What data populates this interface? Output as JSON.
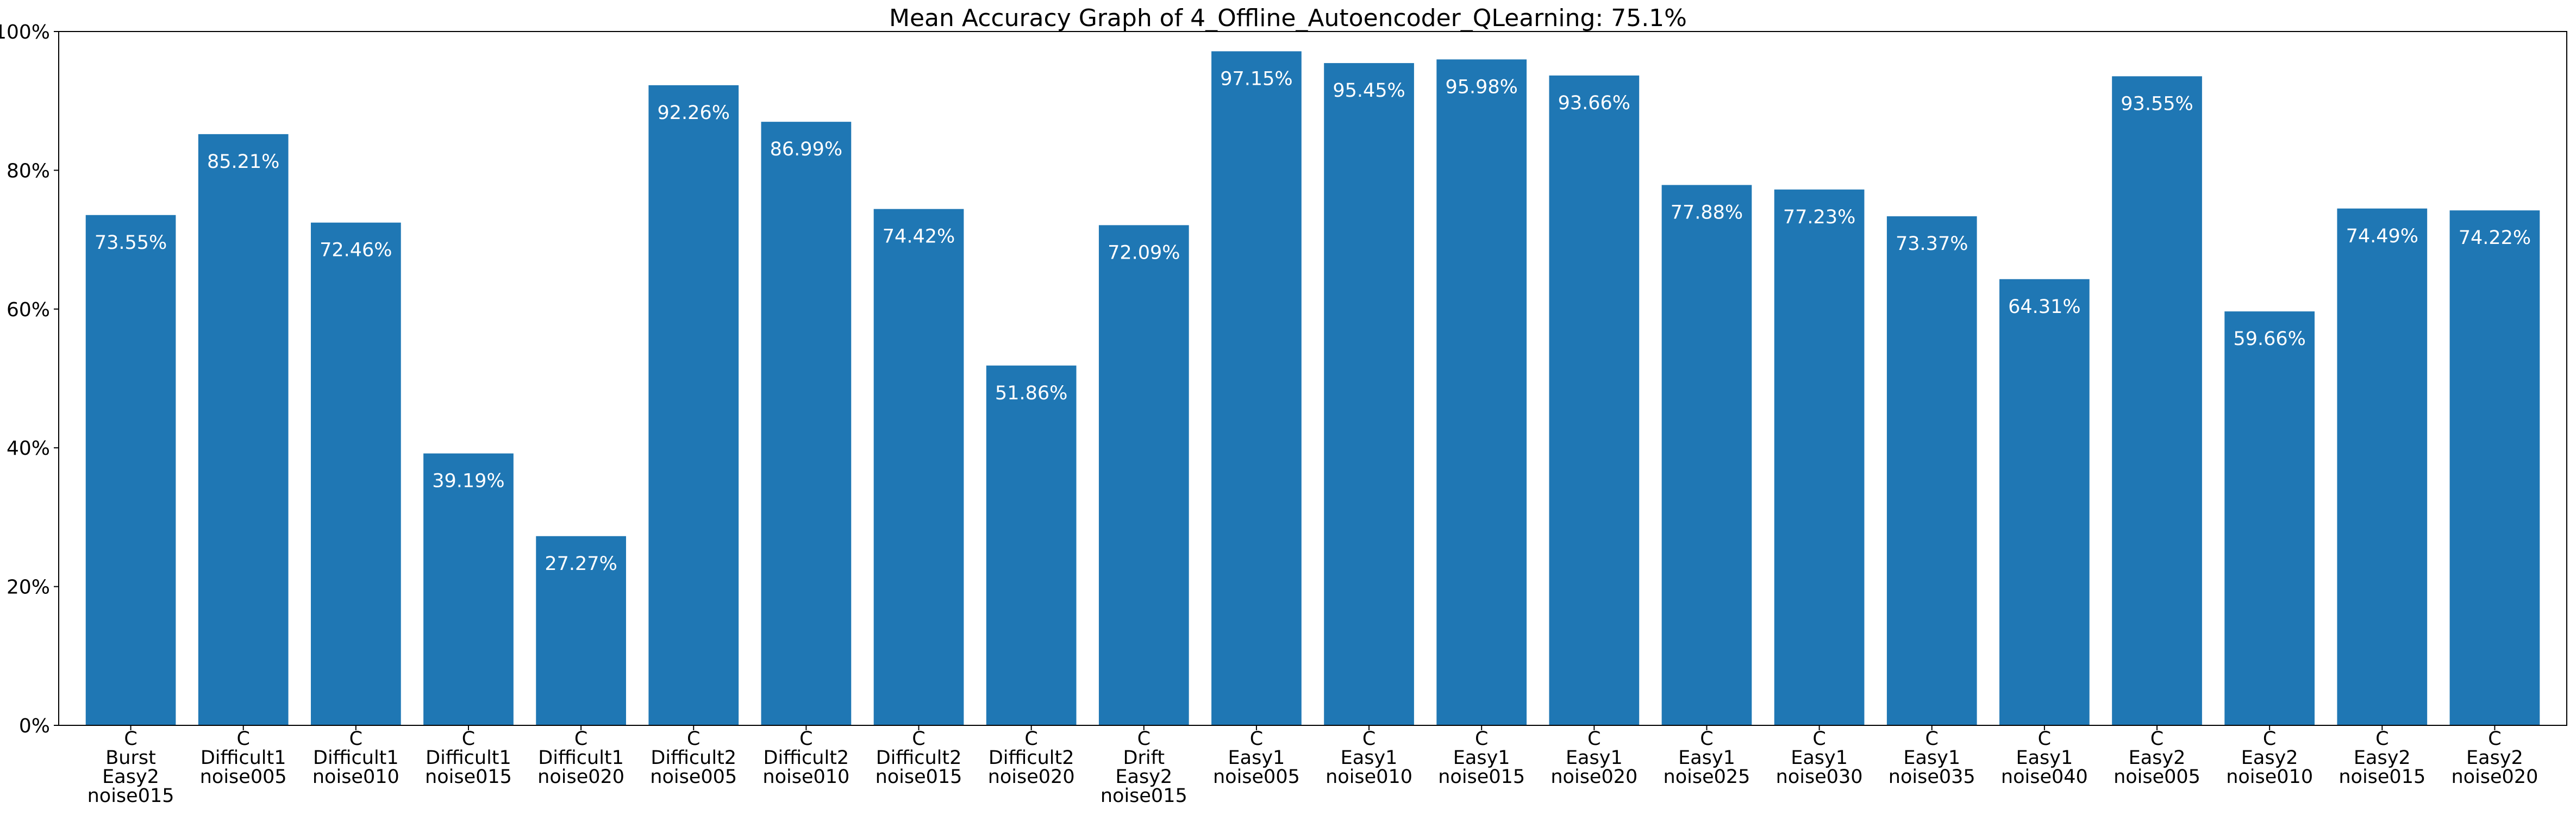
{
  "chart_data": {
    "type": "bar",
    "title": "Mean Accuracy Graph of 4_Offline_Autoencoder_QLearning: 75.1%",
    "xlabel": "",
    "ylabel": "",
    "ylim": [
      0,
      100
    ],
    "yticks": [
      0,
      20,
      40,
      60,
      80,
      100
    ],
    "ytick_labels": [
      "0%",
      "20%",
      "40%",
      "60%",
      "80%",
      "100%"
    ],
    "grid": false,
    "bar_color": "#1f77b4",
    "label_color": "#ffffff",
    "categories": [
      "C\nBurst\nEasy2\nnoise015",
      "C\nDifficult1\nnoise005",
      "C\nDifficult1\nnoise010",
      "C\nDifficult1\nnoise015",
      "C\nDifficult1\nnoise020",
      "C\nDifficult2\nnoise005",
      "C\nDifficult2\nnoise010",
      "C\nDifficult2\nnoise015",
      "C\nDifficult2\nnoise020",
      "C\nDrift\nEasy2\nnoise015",
      "C\nEasy1\nnoise005",
      "C\nEasy1\nnoise010",
      "C\nEasy1\nnoise015",
      "C\nEasy1\nnoise020",
      "C\nEasy1\nnoise025",
      "C\nEasy1\nnoise030",
      "C\nEasy1\nnoise035",
      "C\nEasy1\nnoise040",
      "C\nEasy2\nnoise005",
      "C\nEasy2\nnoise010",
      "C\nEasy2\nnoise015",
      "C\nEasy2\nnoise020"
    ],
    "values": [
      73.55,
      85.21,
      72.46,
      39.19,
      27.27,
      92.26,
      86.99,
      74.42,
      51.86,
      72.09,
      97.15,
      95.45,
      95.98,
      93.66,
      77.88,
      77.23,
      73.37,
      64.31,
      93.55,
      59.66,
      74.49,
      74.22
    ],
    "value_labels": [
      "73.55%",
      "85.21%",
      "72.46%",
      "39.19%",
      "27.27%",
      "92.26%",
      "86.99%",
      "74.42%",
      "51.86%",
      "72.09%",
      "97.15%",
      "95.45%",
      "95.98%",
      "93.66%",
      "77.88%",
      "77.23%",
      "73.37%",
      "64.31%",
      "93.55%",
      "59.66%",
      "74.49%",
      "74.22%"
    ]
  }
}
